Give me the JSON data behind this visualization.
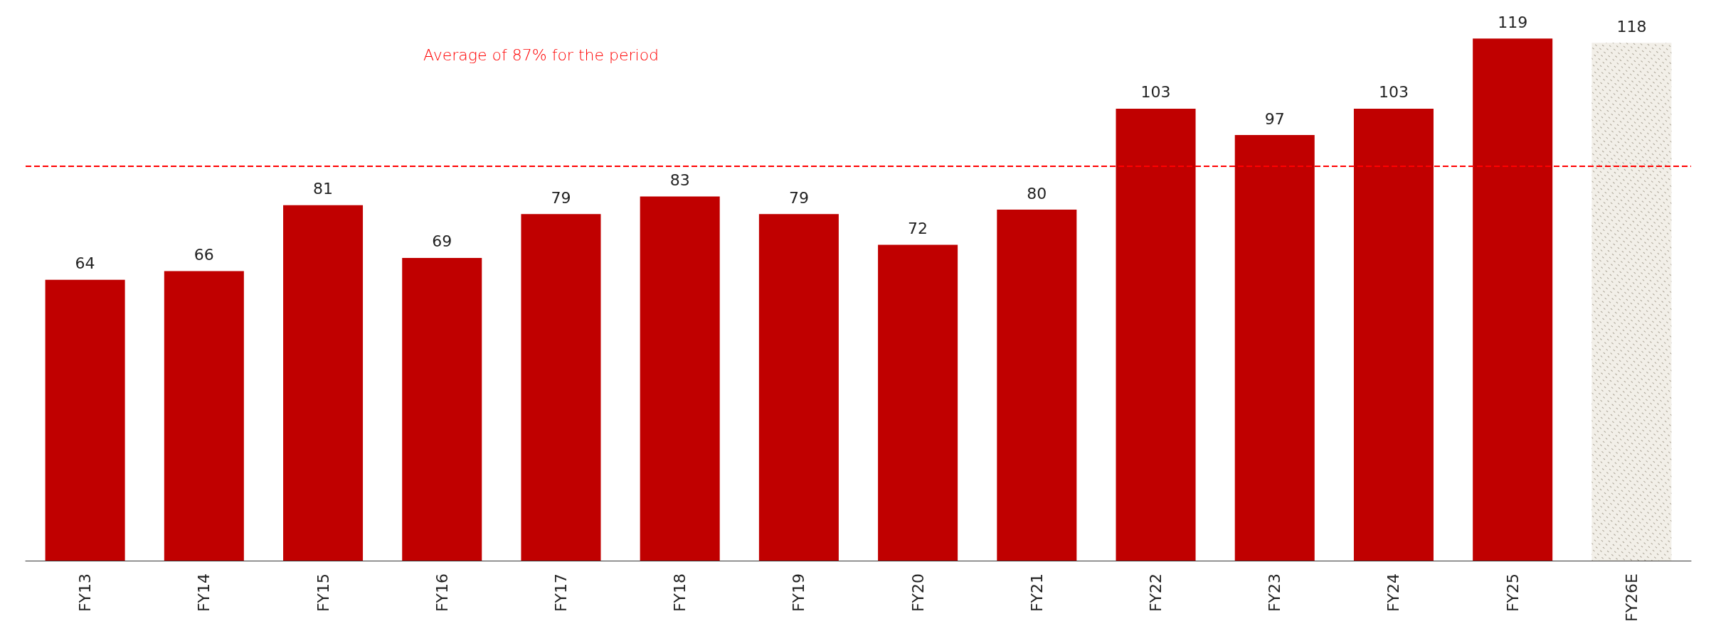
{
  "chart_data": {
    "type": "bar",
    "categories": [
      "FY13",
      "FY14",
      "FY15",
      "FY16",
      "FY17",
      "FY18",
      "FY19",
      "FY20",
      "FY21",
      "FY22",
      "FY23",
      "FY24",
      "FY25",
      "FY26E"
    ],
    "values": [
      64,
      66,
      81,
      69,
      79,
      83,
      79,
      72,
      80,
      103,
      97,
      103,
      119,
      118
    ],
    "colors": [
      "#c00000",
      "#c00000",
      "#c00000",
      "#c00000",
      "#c00000",
      "#c00000",
      "#c00000",
      "#c00000",
      "#c00000",
      "#c00000",
      "#c00000",
      "#c00000",
      "#c00000",
      "#f2efe8"
    ],
    "data_labels": true,
    "ref_lines": [
      {
        "axis": "y",
        "value": 90,
        "label": "Average of 87% for the period",
        "color": "#ff0000",
        "line_style": "dashed"
      }
    ]
  }
}
